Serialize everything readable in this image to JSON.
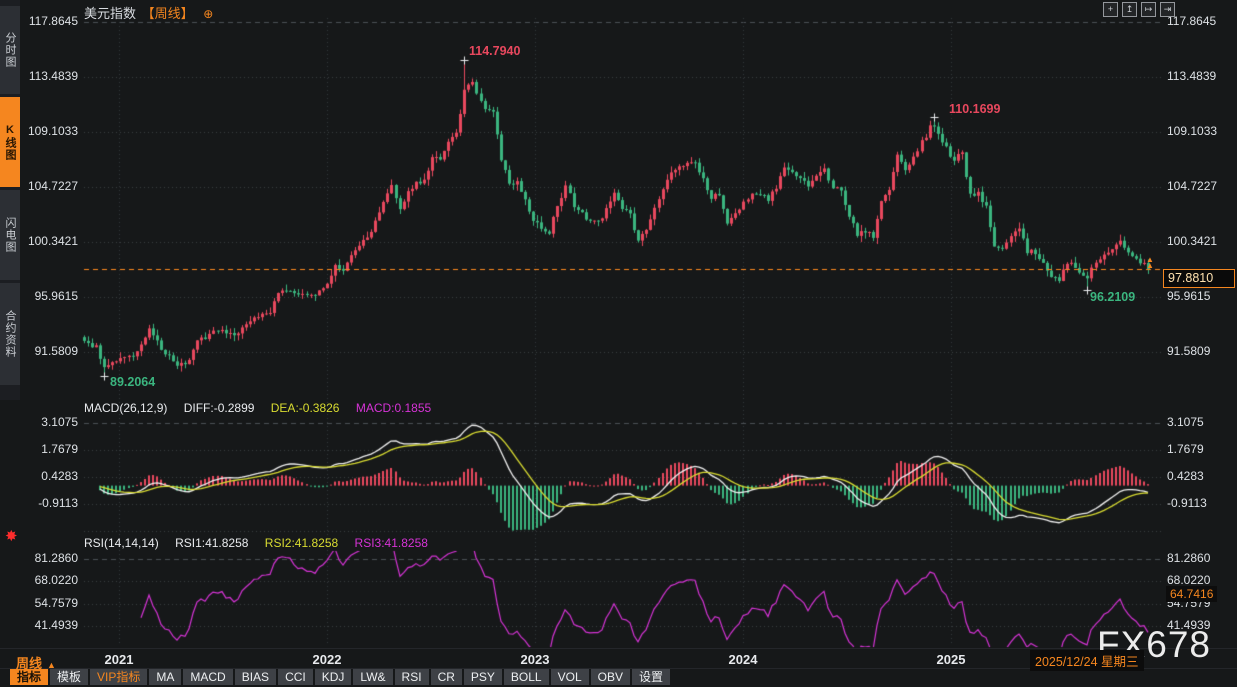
{
  "colors": {
    "bg": "#161819",
    "accent": "#f5861f",
    "up": "#e8485e",
    "down": "#3bb57f",
    "yellow": "#d9dc31",
    "magenta": "#d633d6",
    "white_line": "#f0f0f0",
    "grid": "#3a3e42",
    "grid_bright": "#4b5055",
    "price_line": "#ff8a1e",
    "axis_text": "#dde1e5"
  },
  "sidebar": {
    "items": [
      {
        "label": "分时图",
        "active": false
      },
      {
        "label": "K线图",
        "active": true
      },
      {
        "label": "闪电图",
        "active": false
      },
      {
        "label": "合约资料",
        "active": false
      }
    ]
  },
  "header": {
    "title": "美元指数",
    "period_tag": "【周线】",
    "add_icon": "⊕"
  },
  "topbar": {
    "icons": [
      {
        "name": "pan-crosshair-icon",
        "glyph": "+"
      },
      {
        "name": "scale-vertical-icon",
        "glyph": "↥"
      },
      {
        "name": "scale-horizontal-icon",
        "glyph": "↦"
      },
      {
        "name": "jump-to-latest-icon",
        "glyph": "⇥"
      }
    ]
  },
  "main_chart": {
    "left_axis": [
      "117.8645",
      "113.4839",
      "109.1033",
      "104.7227",
      "100.3421",
      "95.9615",
      "91.5809"
    ],
    "right_axis": [
      "117.8645",
      "113.4839",
      "109.1033",
      "104.7227",
      "100.3421",
      "95.9615",
      "91.5809"
    ],
    "annotations": {
      "high1": "114.7940",
      "high2": "110.1699",
      "low1": "89.2064",
      "low2": "96.2109"
    },
    "last_price": "97.8810"
  },
  "macd_panel": {
    "title": "MACD(26,12,9)",
    "diff": "DIFF:-0.2899",
    "dea": "DEA:-0.3826",
    "macd": "MACD:0.1855",
    "axis": [
      "3.1075",
      "1.7679",
      "0.4283",
      "-0.9113"
    ]
  },
  "rsi_panel": {
    "title": "RSI(14,14,14)",
    "rsi1": "RSI1:41.8258",
    "rsi2": "RSI2:41.8258",
    "rsi3": "RSI3:41.8258",
    "axis": [
      "81.2860",
      "68.0220",
      "54.7579",
      "41.4939"
    ],
    "badge": "64.7416"
  },
  "xaxis": {
    "period": "周线",
    "arrow": "▲",
    "years": [
      "2021",
      "2022",
      "2023",
      "2024",
      "2025"
    ],
    "date": "2025/12/24 星期三"
  },
  "watermark": "FX678",
  "toolbar": {
    "buttons": [
      {
        "name": "indicator",
        "label": "指标",
        "state": "active"
      },
      {
        "name": "template",
        "label": "模板",
        "state": ""
      },
      {
        "name": "vip-indicator",
        "label": "VIP指标",
        "state": "vip"
      },
      {
        "name": "ma",
        "label": "MA",
        "state": ""
      },
      {
        "name": "macd",
        "label": "MACD",
        "state": ""
      },
      {
        "name": "bias",
        "label": "BIAS",
        "state": ""
      },
      {
        "name": "cci",
        "label": "CCI",
        "state": ""
      },
      {
        "name": "kdj",
        "label": "KDJ",
        "state": ""
      },
      {
        "name": "lw",
        "label": "LW&",
        "state": ""
      },
      {
        "name": "rsi",
        "label": "RSI",
        "state": ""
      },
      {
        "name": "cr",
        "label": "CR",
        "state": ""
      },
      {
        "name": "psy",
        "label": "PSY",
        "state": ""
      },
      {
        "name": "boll",
        "label": "BOLL",
        "state": ""
      },
      {
        "name": "vol",
        "label": "VOL",
        "state": ""
      },
      {
        "name": "obv",
        "label": "OBV",
        "state": ""
      },
      {
        "name": "settings",
        "label": "设置",
        "state": ""
      }
    ]
  },
  "chart_data": {
    "type": "candlestick",
    "symbol": "美元指数",
    "period": "周线",
    "panes": [
      "price",
      "MACD(26,12,9)",
      "RSI(14,14,14)"
    ],
    "x_year_ticks": [
      "2021",
      "2022",
      "2023",
      "2024",
      "2025"
    ],
    "price_axis_ticks": [
      117.8645,
      113.4839,
      109.1033,
      104.7227,
      100.3421,
      95.9615,
      91.5809
    ],
    "macd_axis_ticks": [
      3.1075,
      1.7679,
      0.4283,
      -0.9113
    ],
    "rsi_axis_ticks": [
      81.286,
      68.022,
      54.7579,
      41.4939
    ],
    "last_close": 97.881,
    "last_diff": -0.2899,
    "last_dea": -0.3826,
    "last_macd": 0.1855,
    "last_rsi": 41.8258,
    "marked_points": [
      {
        "week": 5,
        "kind": "low",
        "value": 89.2064
      },
      {
        "week": 94,
        "kind": "high",
        "value": 114.794
      },
      {
        "week": 210,
        "kind": "high",
        "value": 110.1699
      },
      {
        "week": 248,
        "kind": "low",
        "value": 96.2109
      }
    ],
    "close_anchors": [
      [
        0,
        92.3
      ],
      [
        3,
        91.5
      ],
      [
        5,
        90.0
      ],
      [
        8,
        90.6
      ],
      [
        12,
        90.9
      ],
      [
        16,
        92.9
      ],
      [
        19,
        91.4
      ],
      [
        23,
        90.0
      ],
      [
        26,
        90.5
      ],
      [
        28,
        92.1
      ],
      [
        31,
        92.6
      ],
      [
        34,
        92.9
      ],
      [
        37,
        92.7
      ],
      [
        40,
        93.3
      ],
      [
        43,
        94.0
      ],
      [
        46,
        94.3
      ],
      [
        48,
        96.1
      ],
      [
        51,
        96.0
      ],
      [
        55,
        95.8
      ],
      [
        57,
        95.6
      ],
      [
        60,
        96.7
      ],
      [
        62,
        98.2
      ],
      [
        64,
        97.6
      ],
      [
        66,
        98.8
      ],
      [
        68,
        99.8
      ],
      [
        71,
        101.0
      ],
      [
        74,
        103.2
      ],
      [
        76,
        104.6
      ],
      [
        78,
        102.9
      ],
      [
        80,
        104.1
      ],
      [
        82,
        104.9
      ],
      [
        84,
        105.1
      ],
      [
        86,
        106.9
      ],
      [
        88,
        106.6
      ],
      [
        90,
        108.1
      ],
      [
        92,
        108.8
      ],
      [
        94,
        112.2
      ],
      [
        96,
        113.2
      ],
      [
        97,
        112.0
      ],
      [
        99,
        110.9
      ],
      [
        101,
        110.8
      ],
      [
        103,
        106.9
      ],
      [
        105,
        104.6
      ],
      [
        107,
        104.9
      ],
      [
        109,
        103.5
      ],
      [
        111,
        102.0
      ],
      [
        113,
        101.2
      ],
      [
        115,
        100.9
      ],
      [
        117,
        103.1
      ],
      [
        119,
        104.6
      ],
      [
        121,
        103.1
      ],
      [
        123,
        102.6
      ],
      [
        125,
        101.6
      ],
      [
        127,
        101.7
      ],
      [
        129,
        102.7
      ],
      [
        131,
        104.2
      ],
      [
        133,
        102.9
      ],
      [
        135,
        102.3
      ],
      [
        137,
        100.0
      ],
      [
        139,
        101.1
      ],
      [
        141,
        102.8
      ],
      [
        143,
        104.2
      ],
      [
        145,
        105.6
      ],
      [
        147,
        106.2
      ],
      [
        149,
        106.5
      ],
      [
        151,
        106.5
      ],
      [
        153,
        105.1
      ],
      [
        155,
        103.5
      ],
      [
        157,
        104.0
      ],
      [
        159,
        101.4
      ],
      [
        161,
        102.2
      ],
      [
        163,
        103.3
      ],
      [
        165,
        104.1
      ],
      [
        167,
        104.0
      ],
      [
        169,
        103.4
      ],
      [
        171,
        104.5
      ],
      [
        173,
        106.0
      ],
      [
        175,
        105.9
      ],
      [
        177,
        105.2
      ],
      [
        179,
        104.7
      ],
      [
        181,
        105.5
      ],
      [
        183,
        105.8
      ],
      [
        185,
        104.4
      ],
      [
        187,
        104.3
      ],
      [
        189,
        102.2
      ],
      [
        191,
        100.7
      ],
      [
        193,
        101.0
      ],
      [
        195,
        100.4
      ],
      [
        197,
        103.2
      ],
      [
        199,
        104.3
      ],
      [
        201,
        107.0
      ],
      [
        203,
        106.0
      ],
      [
        205,
        107.0
      ],
      [
        207,
        108.1
      ],
      [
        209,
        109.3
      ],
      [
        210,
        109.6
      ],
      [
        212,
        108.3
      ],
      [
        213,
        107.6
      ],
      [
        215,
        106.7
      ],
      [
        217,
        107.3
      ],
      [
        219,
        103.8
      ],
      [
        221,
        104.1
      ],
      [
        223,
        102.8
      ],
      [
        225,
        99.5
      ],
      [
        227,
        99.7
      ],
      [
        229,
        100.4
      ],
      [
        231,
        101.1
      ],
      [
        233,
        99.2
      ],
      [
        235,
        99.3
      ],
      [
        237,
        98.2
      ],
      [
        239,
        97.3
      ],
      [
        241,
        97.1
      ],
      [
        243,
        98.5
      ],
      [
        245,
        97.9
      ],
      [
        248,
        97.2
      ],
      [
        250,
        98.4
      ],
      [
        252,
        98.9
      ],
      [
        254,
        99.6
      ],
      [
        256,
        100.2
      ],
      [
        258,
        99.3
      ],
      [
        260,
        98.9
      ],
      [
        262,
        98.2
      ],
      [
        263,
        97.881
      ]
    ]
  }
}
